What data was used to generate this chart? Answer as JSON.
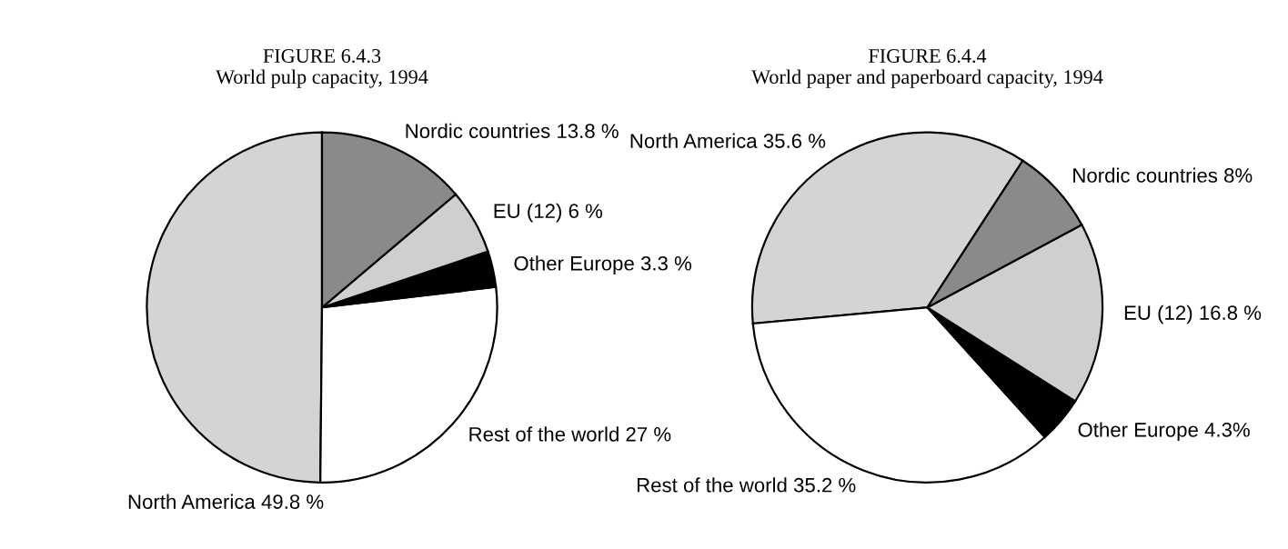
{
  "chart_data": [
    {
      "type": "pie",
      "title": "FIGURE 6.4.3",
      "subtitle": "World pulp capacity, 1994",
      "categories": [
        "North America",
        "Rest of the world",
        "Other Europe",
        "EU (12)",
        "Nordic countries"
      ],
      "values": [
        49.8,
        27,
        3.3,
        6,
        13.8
      ],
      "value_labels": [
        "49.8 %",
        "27 %",
        "3.3 %",
        "6 %",
        "13.8 %"
      ],
      "colors": [
        "#d4d4d4",
        "#ffffff",
        "#000000",
        "#cfcfcf",
        "#8a8a8a"
      ]
    },
    {
      "type": "pie",
      "title": "FIGURE 6.4.4",
      "subtitle": "World paper and paperboard capacity, 1994",
      "categories": [
        "North America",
        "Rest of the world",
        "Other Europe",
        "EU (12)",
        "Nordic countries"
      ],
      "values": [
        35.6,
        35.2,
        4.3,
        16.8,
        8
      ],
      "value_labels": [
        "35.6 %",
        "35.2 %",
        "4.3%",
        "16.8 %",
        "8%"
      ],
      "colors": [
        "#d4d4d4",
        "#ffffff",
        "#000000",
        "#cfcfcf",
        "#8a8a8a"
      ]
    }
  ]
}
